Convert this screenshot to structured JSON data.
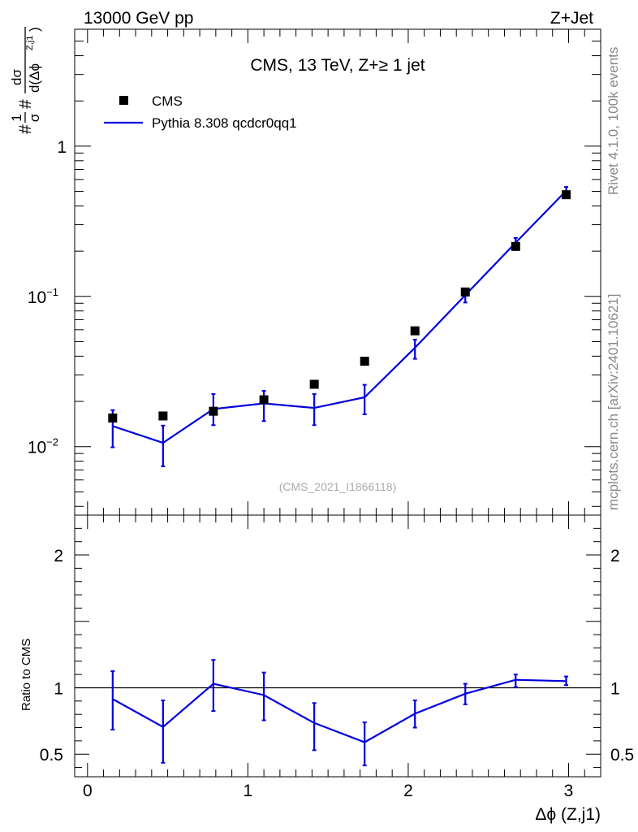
{
  "header": {
    "left": "13000 GeV pp",
    "right": "Z+Jet"
  },
  "side": {
    "rivet": "Rivet 4.1.0,  100k events",
    "mcplots": "mcplots.cern.ch [arXiv:2401.10621]"
  },
  "chart_data": {
    "type": "scatter",
    "title": "CMS, 13 TeV, Z+≥ 1 jet",
    "watermark": "(CMS_2021_I1866118)",
    "xlabel": "Δϕ (Z,j1)",
    "ylabel_parts": {
      "prefix": "#",
      "frac1_num": "1",
      "frac1_den": "σ",
      "mid": "#",
      "frac2_num": "dσ",
      "frac2_den": "d(Δϕ",
      "sup": "Z,j1",
      "close": ")"
    },
    "ratio_ylabel": "Ratio to CMS",
    "xlim": [
      -0.08,
      3.2
    ],
    "xticks": [
      {
        "v": 0,
        "label": "0"
      },
      {
        "v": 1,
        "label": "1"
      },
      {
        "v": 2,
        "label": "2"
      },
      {
        "v": 3,
        "label": "3"
      }
    ],
    "main_ylim": [
      0.0035,
      6
    ],
    "main_yticks": [
      {
        "v": 1,
        "base": "1",
        "exp": ""
      },
      {
        "v": 0.1,
        "base": "10",
        "exp": "−1"
      },
      {
        "v": 0.01,
        "base": "10",
        "exp": "−2"
      }
    ],
    "ratio_ylim": [
      0.33,
      2.3
    ],
    "ratio_yticks": [
      {
        "v": 2,
        "label": "2"
      },
      {
        "v": 1,
        "label": "1"
      },
      {
        "v": 0.5,
        "label": "0.5"
      }
    ],
    "legend": [
      {
        "name": "CMS",
        "marker": "square",
        "color": "#000000"
      },
      {
        "name": "Pythia 8.308 qcdcr0qq1",
        "marker": "line",
        "color": "#0000e0"
      }
    ],
    "x": [
      0.157,
      0.471,
      0.785,
      1.1,
      1.414,
      1.728,
      2.042,
      2.356,
      2.67,
      2.985
    ],
    "series": [
      {
        "name": "CMS",
        "values": [
          0.0155,
          0.016,
          0.0172,
          0.0205,
          0.026,
          0.037,
          0.059,
          0.107,
          0.215,
          0.475
        ]
      },
      {
        "name": "Pythia 8.308 qcdcr0qq1",
        "values": [
          0.0137,
          0.0106,
          0.0178,
          0.0194,
          0.0181,
          0.0213,
          0.0455,
          0.102,
          0.228,
          0.505
        ],
        "err_low": [
          0.0099,
          0.0074,
          0.0139,
          0.0148,
          0.0139,
          0.0164,
          0.0384,
          0.091,
          0.213,
          0.478
        ],
        "err_high": [
          0.0175,
          0.0138,
          0.0224,
          0.0235,
          0.0224,
          0.0258,
          0.0515,
          0.113,
          0.245,
          0.535
        ]
      }
    ],
    "ratio": {
      "values": [
        0.915,
        0.705,
        1.03,
        0.945,
        0.735,
        0.59,
        0.805,
        0.955,
        1.06,
        1.05
      ],
      "err_low": [
        0.685,
        0.435,
        0.825,
        0.755,
        0.53,
        0.415,
        0.7,
        0.875,
        1.005,
        1.02
      ],
      "err_high": [
        1.125,
        0.905,
        1.21,
        1.115,
        0.885,
        0.74,
        0.905,
        1.03,
        1.1,
        1.085
      ]
    }
  }
}
